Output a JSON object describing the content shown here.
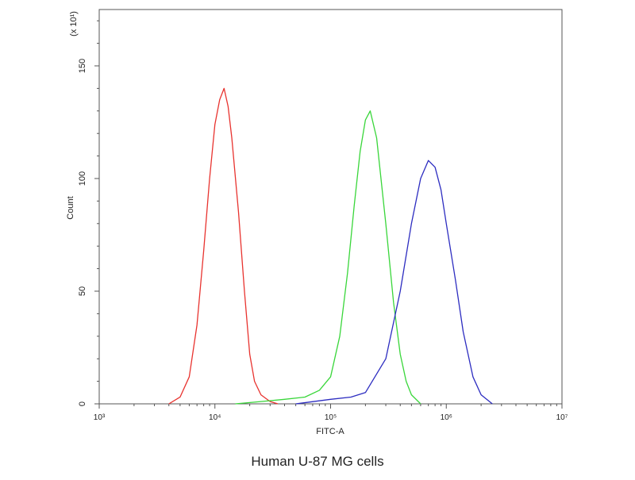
{
  "chart_data": {
    "type": "line",
    "caption": "Human U-87 MG cells",
    "xlabel": "FITC-A",
    "ylabel": "Count",
    "y_multiplier": "(x 10¹)",
    "x_scale": "log",
    "xlim": [
      1000,
      10000000
    ],
    "ylim": [
      0,
      175
    ],
    "x_ticks": [
      {
        "value": 1000,
        "label": "10³"
      },
      {
        "value": 10000,
        "label": "10⁴"
      },
      {
        "value": 100000,
        "label": "10⁵"
      },
      {
        "value": 1000000,
        "label": "10⁶"
      },
      {
        "value": 10000000,
        "label": "10⁷"
      }
    ],
    "y_ticks": [
      {
        "value": 0,
        "label": "0"
      },
      {
        "value": 50,
        "label": "50"
      },
      {
        "value": 100,
        "label": "100"
      },
      {
        "value": 150,
        "label": "150"
      }
    ],
    "grid": false,
    "series": [
      {
        "color": "#e8332f",
        "x": [
          4000,
          5000,
          6000,
          7000,
          8000,
          9000,
          10000,
          11000,
          12000,
          13000,
          14000,
          16000,
          18000,
          20000,
          22000,
          25000,
          30000,
          35000
        ],
        "y": [
          0,
          3,
          12,
          35,
          68,
          100,
          124,
          135,
          140,
          132,
          118,
          85,
          50,
          22,
          10,
          4,
          1,
          0
        ]
      },
      {
        "color": "#39d63a",
        "x": [
          15000,
          25000,
          40000,
          60000,
          80000,
          100000,
          120000,
          140000,
          160000,
          180000,
          200000,
          220000,
          250000,
          300000,
          350000,
          400000,
          450000,
          500000,
          600000
        ],
        "y": [
          0,
          1,
          2,
          3,
          6,
          12,
          30,
          58,
          88,
          112,
          126,
          130,
          118,
          80,
          45,
          22,
          10,
          4,
          0
        ]
      },
      {
        "color": "#2c2cc0",
        "x": [
          50000,
          100000,
          150000,
          200000,
          300000,
          400000,
          500000,
          600000,
          700000,
          800000,
          900000,
          1000000,
          1200000,
          1400000,
          1700000,
          2000000,
          2500000
        ],
        "y": [
          0,
          2,
          3,
          5,
          20,
          50,
          80,
          100,
          108,
          105,
          95,
          80,
          55,
          32,
          12,
          4,
          0
        ]
      }
    ]
  }
}
